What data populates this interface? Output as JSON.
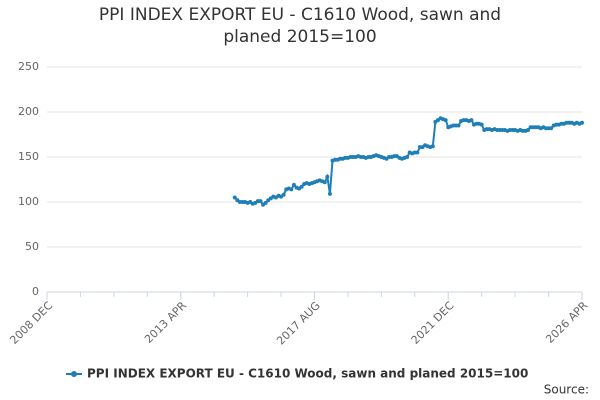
{
  "chart_data": {
    "type": "line",
    "title": "PPI INDEX EXPORT EU - C1610 Wood, sawn and planed 2015=100",
    "source": "Source:",
    "x": [
      "2015 JAN",
      "2015 FEB",
      "2015 MAR",
      "2015 APR",
      "2015 MAY",
      "2015 JUN",
      "2015 JUL",
      "2015 AUG",
      "2015 SEP",
      "2015 OCT",
      "2015 NOV",
      "2015 DEC",
      "2016 JAN",
      "2016 FEB",
      "2016 MAR",
      "2016 APR",
      "2016 MAY",
      "2016 JUN",
      "2016 JUL",
      "2016 AUG",
      "2016 SEP",
      "2016 OCT",
      "2016 NOV",
      "2016 DEC",
      "2017 JAN",
      "2017 FEB",
      "2017 MAR",
      "2017 APR",
      "2017 MAY",
      "2017 JUN",
      "2017 JUL",
      "2017 AUG",
      "2017 SEP",
      "2017 OCT",
      "2017 NOV",
      "2017 DEC",
      "2018 JAN",
      "2018 FEB",
      "2018 MAR",
      "2018 APR",
      "2018 MAY",
      "2018 JUN",
      "2018 JUL",
      "2018 AUG",
      "2018 SEP",
      "2018 OCT",
      "2018 NOV",
      "2018 DEC",
      "2019 JAN",
      "2019 FEB",
      "2019 MAR",
      "2019 APR",
      "2019 MAY",
      "2019 JUN",
      "2019 JUL",
      "2019 AUG",
      "2019 SEP",
      "2019 OCT",
      "2019 NOV",
      "2019 DEC",
      "2020 JAN",
      "2020 FEB",
      "2020 MAR",
      "2020 APR",
      "2020 MAY",
      "2020 JUN",
      "2020 JUL",
      "2020 AUG",
      "2020 SEP",
      "2020 OCT",
      "2020 NOV",
      "2020 DEC",
      "2021 JAN",
      "2021 FEB",
      "2021 MAR",
      "2021 APR",
      "2021 MAY",
      "2021 JUN",
      "2021 JUL",
      "2021 AUG",
      "2021 SEP",
      "2021 OCT",
      "2021 NOV",
      "2021 DEC",
      "2022 JAN",
      "2022 FEB",
      "2022 MAR",
      "2022 APR",
      "2022 MAY",
      "2022 JUN",
      "2022 JUL",
      "2022 AUG",
      "2022 SEP",
      "2022 OCT",
      "2022 NOV",
      "2022 DEC",
      "2023 JAN",
      "2023 FEB",
      "2023 MAR",
      "2023 APR",
      "2023 MAY",
      "2023 JUN",
      "2023 JUL",
      "2023 AUG",
      "2023 SEP",
      "2023 OCT",
      "2023 NOV",
      "2023 DEC",
      "2024 JAN",
      "2024 FEB",
      "2024 MAR",
      "2024 APR",
      "2024 MAY",
      "2024 JUN",
      "2024 JUL",
      "2024 AUG",
      "2024 SEP",
      "2024 OCT",
      "2024 NOV",
      "2024 DEC",
      "2025 JAN",
      "2025 FEB",
      "2025 MAR",
      "2025 APR",
      "2025 MAY",
      "2025 JUN",
      "2025 JUL",
      "2025 AUG",
      "2025 SEP",
      "2025 OCT",
      "2025 NOV",
      "2025 DEC",
      "2026 JAN",
      "2026 FEB",
      "2026 MAR",
      "2026 APR"
    ],
    "series": [
      {
        "name": "PPI INDEX EXPORT EU - C1610 Wood, sawn and planed 2015=100",
        "color": "#1f7fb6",
        "values": [
          105,
          102,
          100,
          100,
          100,
          99,
          100,
          98,
          99,
          101,
          101,
          97,
          99,
          102,
          104,
          106,
          105,
          107,
          106,
          108,
          114,
          115,
          114,
          119,
          116,
          115,
          117,
          120,
          121,
          120,
          121,
          122,
          123,
          124,
          123,
          122,
          128,
          109,
          146,
          147,
          147,
          148,
          148,
          149,
          149,
          150,
          150,
          150,
          151,
          150,
          150,
          149,
          150,
          150,
          151,
          152,
          151,
          150,
          149,
          148,
          150,
          150,
          151,
          151,
          149,
          148,
          149,
          150,
          155,
          154,
          155,
          155,
          161,
          161,
          163,
          162,
          161,
          162,
          189,
          191,
          193,
          192,
          191,
          183,
          184,
          185,
          185,
          185,
          190,
          191,
          191,
          190,
          191,
          186,
          187,
          187,
          186,
          180,
          181,
          181,
          180,
          181,
          180,
          180,
          180,
          180,
          179,
          180,
          180,
          180,
          179,
          180,
          179,
          179,
          180,
          183,
          183,
          183,
          183,
          182,
          183,
          182,
          182,
          182,
          185,
          186,
          186,
          187,
          187,
          188,
          188,
          188,
          187,
          188,
          187,
          188
        ]
      }
    ],
    "xlim": [
      "2008 DEC",
      "2026 APR"
    ],
    "xticks": [
      "2008 DEC",
      "2013 APR",
      "2017 AUG",
      "2021 DEC",
      "2026 APR"
    ],
    "ylim": [
      0,
      250
    ],
    "yticks": [
      0,
      50,
      100,
      150,
      200,
      250
    ],
    "grid": true
  }
}
